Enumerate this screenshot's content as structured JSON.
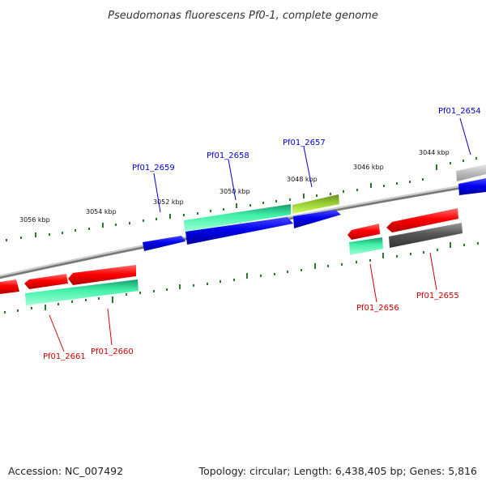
{
  "title": "Pseudomonas fluorescens Pf0-1, complete genome",
  "footer": {
    "accession": "Accession: NC_007492",
    "summary": "Topology: circular; Length: 6,438,405 bp; Genes: 5,816"
  },
  "colors": {
    "backbone": "#808080",
    "ticks": "#2a7a2a",
    "forward_label": "#0000cc",
    "reverse_label": "#cc0000"
  },
  "ruler": {
    "unit": "kbp",
    "labels": [
      "3056 kbp",
      "3054 kbp",
      "3052 kbp",
      "3050 kbp",
      "3048 kbp",
      "3046 kbp",
      "3044 kbp"
    ]
  },
  "genes": [
    {
      "name": "Pf01_2654",
      "strand": "forward"
    },
    {
      "name": "Pf01_2655",
      "strand": "reverse"
    },
    {
      "name": "Pf01_2656",
      "strand": "reverse"
    },
    {
      "name": "Pf01_2657",
      "strand": "forward"
    },
    {
      "name": "Pf01_2658",
      "strand": "forward"
    },
    {
      "name": "Pf01_2659",
      "strand": "forward"
    },
    {
      "name": "Pf01_2660",
      "strand": "reverse"
    },
    {
      "name": "Pf01_2661",
      "strand": "reverse"
    }
  ]
}
